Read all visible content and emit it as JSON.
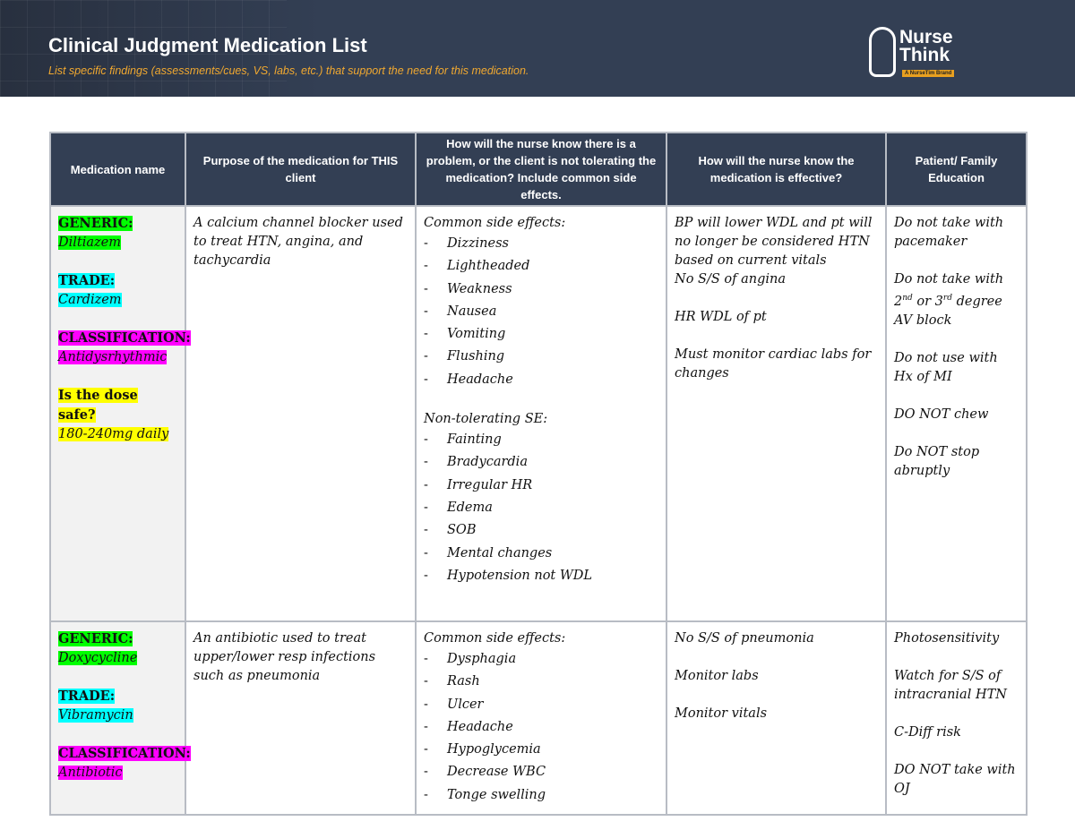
{
  "header": {
    "title": "Clinical Judgment Medication List",
    "subtitle": "List specific findings (assessments/cues, VS, labs, etc.) that support the need for this medication.",
    "logo": {
      "line1": "Nurse",
      "line2": "Think",
      "tagline": "A NurseTim Brand"
    }
  },
  "colors": {
    "banner": "#333f54",
    "generic": "#00ff00",
    "trade": "#00ffff",
    "classification": "#ff00ff",
    "dose": "#ffff00",
    "subtitle": "#f0a830"
  },
  "columns": [
    "Medication name",
    "Purpose of the medication for THIS client",
    "How will the nurse know there is a problem, or the client is not tolerating the medication?  Include common side effects.",
    "How will the nurse know the medication is effective?",
    "Patient/ Family Education"
  ],
  "rows": [
    {
      "generic_label": "GENERIC:",
      "generic": "Diltiazem",
      "trade_label": "TRADE:",
      "trade": "Cardizem",
      "class_label": "CLASSIFICATION:",
      "classification": "Antidysrhythmic",
      "dose_label": "Is the dose safe?",
      "dose": "180-240mg daily",
      "purpose": "A calcium channel blocker used to treat HTN, angina, and tachycardia",
      "common_label": "Common side effects:",
      "common": [
        "Dizziness",
        "Lightheaded",
        "Weakness",
        "Nausea",
        "Vomiting",
        "Flushing",
        "Headache"
      ],
      "nontol_label": "Non-tolerating SE:",
      "nontol": [
        "Fainting",
        "Bradycardia",
        "Irregular HR",
        "Edema",
        "SOB",
        "Mental changes",
        "Hypotension not WDL"
      ],
      "effective": [
        "BP will lower WDL and pt will no longer be considered HTN based on current vitals|No S/S of angina",
        "HR WDL of pt",
        "Must monitor cardiac labs for changes"
      ],
      "education": [
        "Do not take with pacemaker",
        "Do not take with 2nd or 3rd degree AV block",
        "Do not use with Hx of MI",
        "DO NOT chew",
        "Do NOT stop abruptly"
      ]
    },
    {
      "generic_label": "GENERIC:",
      "generic": "Doxycycline",
      "trade_label": "TRADE:",
      "trade": "Vibramycin",
      "class_label": "CLASSIFICATION:",
      "classification": "Antibiotic",
      "purpose": "An antibiotic used to treat upper/lower resp infections such as pneumonia",
      "common_label": "Common side effects:",
      "common": [
        "Dysphagia",
        "Rash",
        "Ulcer",
        "Headache",
        "Hypoglycemia",
        "Decrease WBC",
        "Tonge swelling"
      ],
      "effective": [
        "No S/S of pneumonia",
        "Monitor labs",
        "Monitor vitals"
      ],
      "education": [
        "Photosensitivity",
        "Watch for S/S of intracranial HTN",
        "C-Diff risk",
        "DO NOT take with OJ"
      ]
    }
  ]
}
